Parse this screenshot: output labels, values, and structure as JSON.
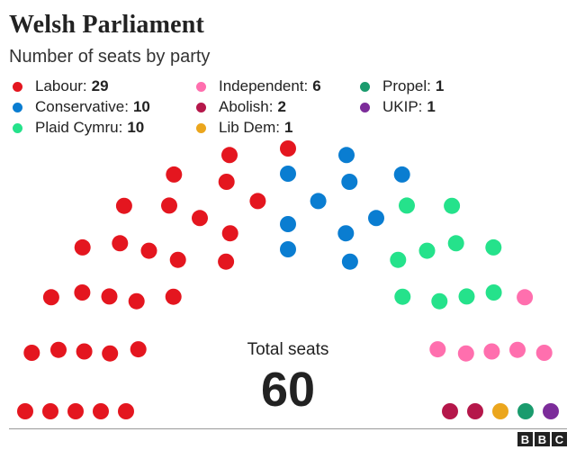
{
  "header": {
    "title": "Welsh Parliament",
    "subtitle": "Number of seats by party"
  },
  "legend": [
    {
      "label": "Labour:",
      "value": "29",
      "color": "#e4161f"
    },
    {
      "label": "Conservative:",
      "value": "10",
      "color": "#0a7dd1"
    },
    {
      "label": "Plaid Cymru:",
      "value": "10",
      "color": "#25e28b"
    },
    {
      "label": "Independent:",
      "value": "6",
      "color": "#ff6fae"
    },
    {
      "label": "Abolish:",
      "value": "2",
      "color": "#b5174a"
    },
    {
      "label": "Lib Dem:",
      "value": "1",
      "color": "#eba61d"
    },
    {
      "label": "Propel:",
      "value": "1",
      "color": "#1a9b6d"
    },
    {
      "label": "UKIP:",
      "value": "1",
      "color": "#7c2c9a"
    }
  ],
  "total": {
    "label": "Total seats",
    "value": "60"
  },
  "logo": [
    "B",
    "B",
    "C"
  ],
  "chart_data": {
    "type": "parliament",
    "total_seats": 60,
    "categories": [
      "Labour",
      "Conservative",
      "Plaid Cymru",
      "Independent",
      "Abolish",
      "Lib Dem",
      "Propel",
      "UKIP"
    ],
    "values": [
      29,
      10,
      10,
      6,
      2,
      1,
      1,
      1
    ],
    "colors": [
      "#e4161f",
      "#0a7dd1",
      "#25e28b",
      "#ff6fae",
      "#b5174a",
      "#eba61d",
      "#1a9b6d",
      "#7c2c9a"
    ],
    "title": "Welsh Parliament",
    "subtitle": "Number of seats by party"
  }
}
